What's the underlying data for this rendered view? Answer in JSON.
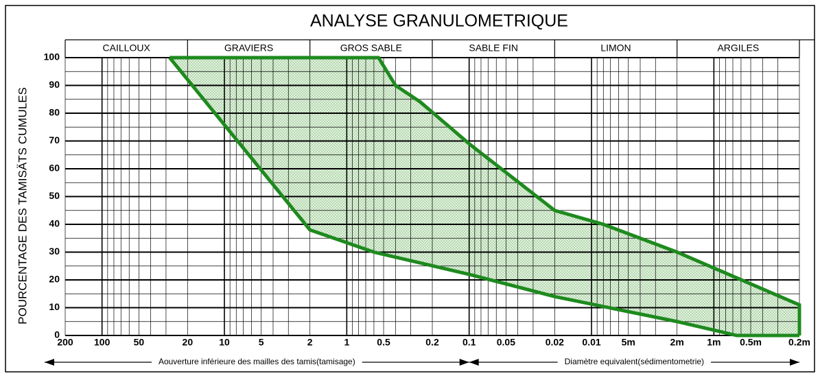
{
  "chart_data": {
    "type": "area",
    "title": "ANALYSE GRANULOMETRIQUE",
    "ylabel": "POURCENTAGE DES TAMISÄTS CUMULES",
    "xscale": "log",
    "xlim": [
      200,
      0.0002
    ],
    "ylim": [
      0,
      100
    ],
    "yticks": [
      0,
      10,
      20,
      30,
      40,
      50,
      60,
      70,
      80,
      90,
      100
    ],
    "yminor": [
      5,
      15,
      25,
      35,
      45,
      55,
      65,
      75,
      85,
      95
    ],
    "xticks": [
      200,
      100,
      50,
      20,
      10,
      5,
      2,
      1,
      0.5,
      0.2,
      0.1,
      0.05,
      0.02,
      0.01,
      {
        "value": 0.005,
        "label": "5m"
      },
      {
        "value": 0.002,
        "label": "2m"
      },
      {
        "value": 0.001,
        "label": "1m"
      },
      {
        "value": 0.0005,
        "label": "0.5m"
      },
      {
        "value": 0.0002,
        "label": "0.2m"
      }
    ],
    "xminor": [
      200,
      100,
      90,
      80,
      70,
      60,
      50,
      40,
      30,
      20,
      10,
      9,
      8,
      7,
      6,
      5,
      4,
      3,
      2,
      1,
      0.9,
      0.8,
      0.7,
      0.6,
      0.5,
      0.4,
      0.3,
      0.2,
      0.1,
      0.09,
      0.08,
      0.07,
      0.06,
      0.05,
      0.04,
      0.03,
      0.02,
      0.01,
      0.009,
      0.008,
      0.007,
      0.006,
      0.005,
      0.004,
      0.003,
      0.002,
      0.001,
      0.0009,
      0.0008,
      0.0007,
      0.0006,
      0.0005,
      0.0004,
      0.0003,
      0.0002
    ],
    "classes": [
      {
        "label": "CAILLOUX",
        "from": 200,
        "to": 20
      },
      {
        "label": "GRAVIERS",
        "from": 20,
        "to": 2
      },
      {
        "label": "GROS SABLE",
        "from": 2,
        "to": 0.2
      },
      {
        "label": "SABLE FIN",
        "from": 0.2,
        "to": 0.02
      },
      {
        "label": "LIMON",
        "from": 0.02,
        "to": 0.002
      },
      {
        "label": "ARGILES",
        "from": 0.002,
        "to": 0.0002
      }
    ],
    "x_annotations": [
      {
        "label": "Aouverture inférieure des mailles des tamis(tamisage)",
        "from": 200,
        "to": 0.1
      },
      {
        "label": "Diamètre equivalent(sédimentometrie)",
        "from": 0.1,
        "to": 0.0002
      }
    ],
    "fill_color": "#cfe8c8",
    "series": [
      {
        "color": "#1e8a1e",
        "x": [
          28,
          0.55,
          0.4,
          0.25,
          0.1,
          0.02,
          0.008,
          0.002,
          0.0002,
          0.0002
        ],
        "values": [
          100,
          100,
          90,
          84,
          69,
          45,
          40,
          30,
          11,
          0
        ]
      },
      {
        "color": "#1e8a1e",
        "x": [
          28,
          2,
          0.6,
          0.1,
          0.02,
          0.002,
          0.00065,
          0.0002
        ],
        "values": [
          100,
          38,
          30,
          22,
          14,
          5,
          0,
          0
        ]
      }
    ]
  }
}
